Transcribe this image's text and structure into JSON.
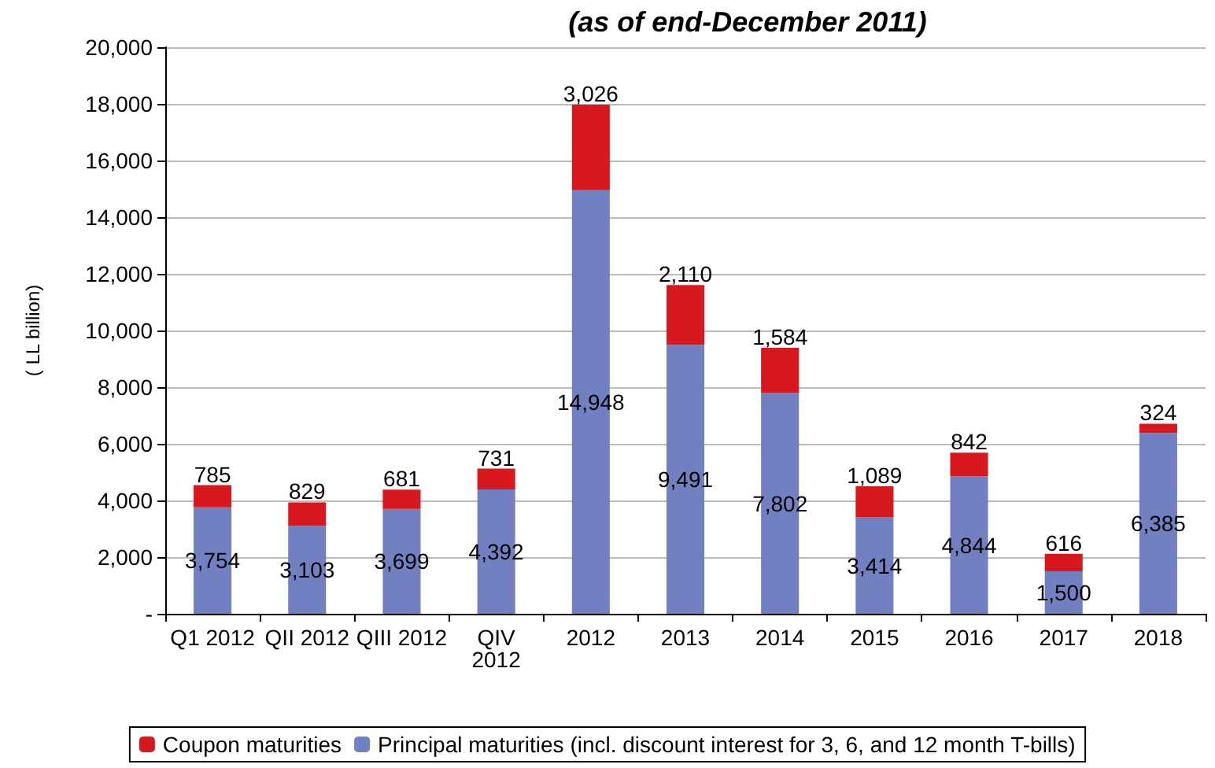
{
  "chart_data": {
    "type": "bar",
    "title": "(as of end-December 2011)",
    "ylabel": "( LL billion)",
    "categories": [
      "Q1 2012",
      "QII 2012",
      "QIII 2012",
      "QIV 2012",
      "2012",
      "2013",
      "2014",
      "2015",
      "2016",
      "2017",
      "2018"
    ],
    "stacked": true,
    "grid": "y",
    "legend": "bottom",
    "ylim": [
      0,
      20000
    ],
    "yticks": [
      {
        "value": 0,
        "label": "-"
      },
      {
        "value": 2000,
        "label": "2,000"
      },
      {
        "value": 4000,
        "label": "4,000"
      },
      {
        "value": 6000,
        "label": "6,000"
      },
      {
        "value": 8000,
        "label": "8,000"
      },
      {
        "value": 10000,
        "label": "10,000"
      },
      {
        "value": 12000,
        "label": "12,000"
      },
      {
        "value": 14000,
        "label": "14,000"
      },
      {
        "value": 16000,
        "label": "16,000"
      },
      {
        "value": 18000,
        "label": "18,000"
      },
      {
        "value": 20000,
        "label": "20,000"
      }
    ],
    "series": [
      {
        "name": "Principal maturities (incl. discount interest for 3, 6, and 12 month T-bills)",
        "color": "#7180c0",
        "values": [
          3754,
          3103,
          3699,
          4392,
          14948,
          9491,
          7802,
          3414,
          4844,
          1500,
          6385
        ],
        "value_labels": [
          "3,754",
          "3,103",
          "3,699",
          "4,392",
          "14,948",
          "9,491",
          "7,802",
          "3,414",
          "4,844",
          "1,500",
          "6,385"
        ]
      },
      {
        "name": "Coupon maturities",
        "color": "#d7181f",
        "values": [
          785,
          829,
          681,
          731,
          3026,
          2110,
          1584,
          1089,
          842,
          616,
          324
        ],
        "value_labels": [
          "785",
          "829",
          "681",
          "731",
          "3,026",
          "2,110",
          "1,584",
          "1,089",
          "842",
          "616",
          "324"
        ]
      }
    ]
  }
}
